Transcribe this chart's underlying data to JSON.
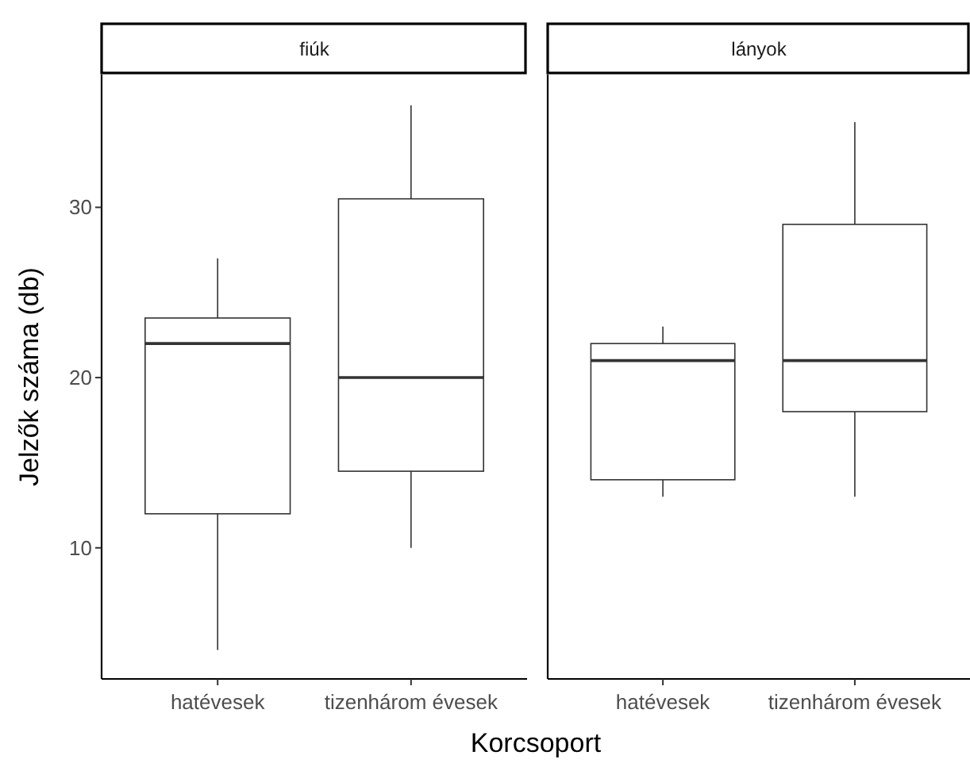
{
  "chart_data": [
    {
      "type": "box",
      "title": "fiúk",
      "ylabel": "Jelzők száma (db)",
      "xlabel": "Korcsoport",
      "categories": [
        "hatévesek",
        "tizenhárom évesek"
      ],
      "boxes": [
        {
          "low": 4,
          "q1": 12,
          "median": 22,
          "q3": 23.5,
          "high": 27
        },
        {
          "low": 10,
          "q1": 14.5,
          "median": 20,
          "q3": 30.5,
          "high": 36
        }
      ],
      "ylim": [
        2.3,
        37.8
      ],
      "yticks": [
        10,
        20,
        30
      ]
    },
    {
      "type": "box",
      "title": "lányok",
      "categories": [
        "hatévesek",
        "tizenhárom évesek"
      ],
      "boxes": [
        {
          "low": 13,
          "q1": 14,
          "median": 21,
          "q3": 22,
          "high": 23
        },
        {
          "low": 13,
          "q1": 18,
          "median": 21,
          "q3": 29,
          "high": 35
        }
      ],
      "ylim": [
        2.3,
        37.8
      ],
      "yticks": [
        10,
        20,
        30
      ],
      "tick_labels": "x"
    }
  ]
}
